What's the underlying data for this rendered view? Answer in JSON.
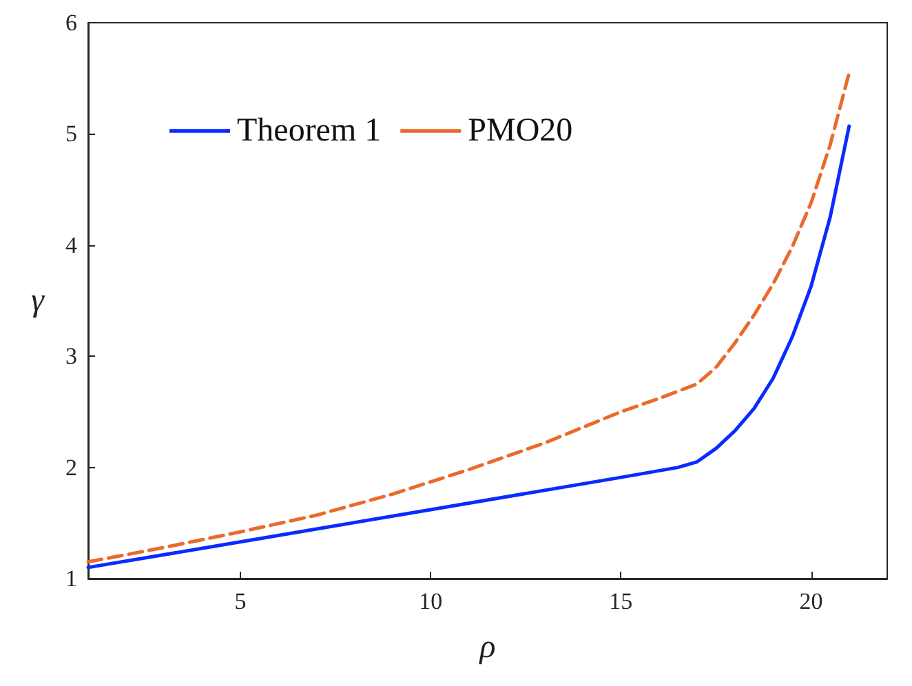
{
  "chart_data": {
    "type": "line",
    "xlabel": "ρ",
    "ylabel": "γ",
    "xlim": [
      1,
      22
    ],
    "xticks": [
      5,
      10,
      15,
      20
    ],
    "ylim": [
      1,
      6
    ],
    "yticks": [
      1,
      2,
      3,
      4,
      5,
      6
    ],
    "grid": false,
    "legend": "top left",
    "marker": "none",
    "series": [
      {
        "name": "Theorem 1",
        "color": "#0a2bff",
        "line_style": "solid",
        "x": [
          1,
          5,
          10,
          15,
          16.5,
          17,
          17.5,
          18,
          18.5,
          19,
          19.5,
          20,
          20.5,
          21
        ],
        "values": [
          1.1,
          1.33,
          1.62,
          1.91,
          2.0,
          2.05,
          2.17,
          2.33,
          2.53,
          2.8,
          3.17,
          3.63,
          4.25,
          5.07
        ]
      },
      {
        "name": "PMO20",
        "color": "#ea6a2c",
        "line_style": "dashed",
        "x": [
          1,
          3,
          5,
          7,
          9,
          11,
          13,
          15,
          16,
          17,
          17.5,
          18,
          18.5,
          19,
          19.5,
          20,
          20.5,
          21
        ],
        "values": [
          1.15,
          1.28,
          1.42,
          1.57,
          1.76,
          1.98,
          2.22,
          2.5,
          2.62,
          2.75,
          2.9,
          3.12,
          3.37,
          3.65,
          3.98,
          4.38,
          4.9,
          5.55
        ]
      }
    ]
  }
}
